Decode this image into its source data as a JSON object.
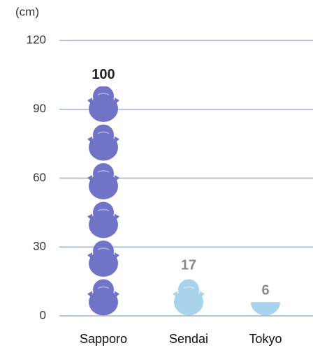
{
  "chart_data": {
    "type": "pictograph",
    "y_axis_label": "(cm)",
    "categories": [
      "Sapporo",
      "Sendai",
      "Tokyo"
    ],
    "values": [
      100,
      17,
      6
    ],
    "colors": [
      "#7073c6",
      "#a8d3ec",
      "#a8d3ec"
    ],
    "ylim": [
      0,
      120
    ],
    "yticks": [
      0,
      30,
      60,
      90,
      120
    ],
    "grid": true
  }
}
